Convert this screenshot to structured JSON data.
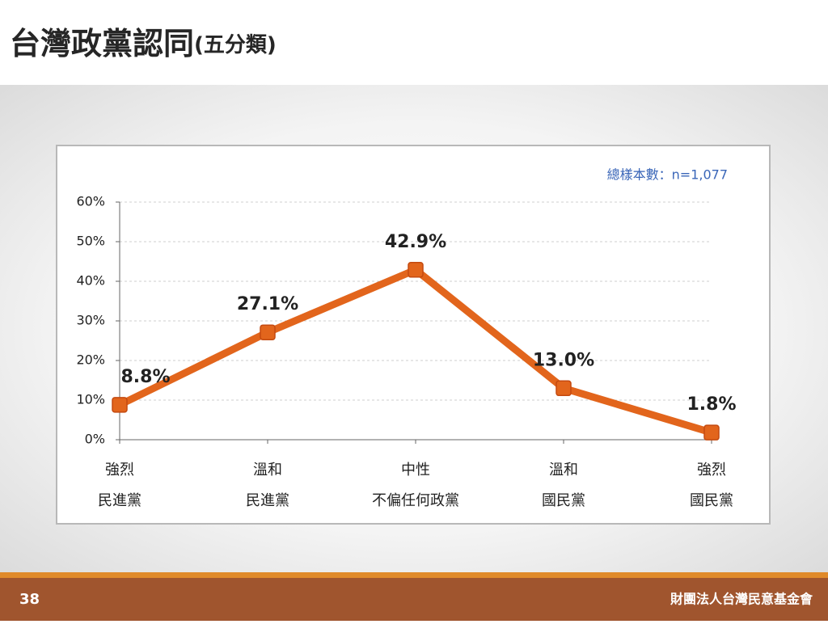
{
  "slide": {
    "title": "台灣政黨認同",
    "subtitle": "(五分類)",
    "page_number": "38",
    "footer": "財團法人台灣民意基金會"
  },
  "chart_data": {
    "type": "line",
    "annotation": "總樣本數：n=1,077",
    "categories": [
      [
        "強烈",
        "民進黨"
      ],
      [
        "溫和",
        "民進黨"
      ],
      [
        "中性",
        "不偏任何政黨"
      ],
      [
        "溫和",
        "國民黨"
      ],
      [
        "強烈",
        "國民黨"
      ]
    ],
    "values": [
      8.8,
      27.1,
      42.9,
      13.0,
      1.8
    ],
    "value_labels": [
      "8.8%",
      "27.1%",
      "42.9%",
      "13.0%",
      "1.8%"
    ],
    "color": "#e2651c",
    "ylim": [
      0,
      60
    ],
    "yticks": [
      {
        "value": 0,
        "label": "0%"
      },
      {
        "value": 10,
        "label": "10%"
      },
      {
        "value": 20,
        "label": "20%"
      },
      {
        "value": 30,
        "label": "30%"
      },
      {
        "value": 40,
        "label": "40%"
      },
      {
        "value": 50,
        "label": "50%"
      },
      {
        "value": 60,
        "label": "60%"
      }
    ],
    "grid": true
  }
}
